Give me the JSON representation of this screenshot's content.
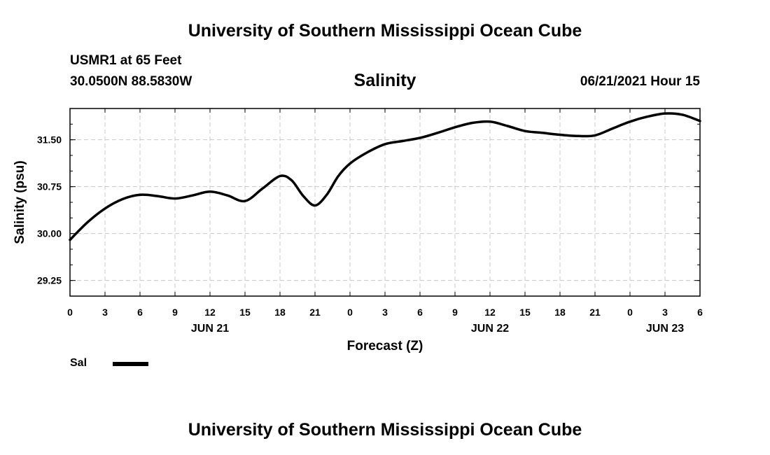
{
  "header": {
    "title": "University of Southern Mississippi Ocean Cube",
    "station": "USMR1 at 65 Feet",
    "coordinates": "30.0500N  88.5830W",
    "parameter": "Salinity",
    "datetime": "06/21/2021 Hour 15"
  },
  "footer": {
    "title": "University of Southern Mississippi Ocean Cube"
  },
  "legend": {
    "label": "Sal",
    "color": "#000000"
  },
  "chart_data": {
    "type": "line",
    "title": "Salinity",
    "xlabel": "Forecast (Z)",
    "ylabel": "Salinity (psu)",
    "xlim": [
      0,
      54
    ],
    "ylim": [
      29.0,
      32.0
    ],
    "grid": true,
    "x_ticks": [
      0,
      3,
      6,
      9,
      12,
      15,
      18,
      21,
      24,
      27,
      30,
      33,
      36,
      39,
      42,
      45,
      48,
      51,
      54
    ],
    "x_tick_labels": [
      "0",
      "3",
      "6",
      "9",
      "12",
      "15",
      "18",
      "21",
      "0",
      "3",
      "6",
      "9",
      "12",
      "15",
      "18",
      "21",
      "0",
      "3",
      "6"
    ],
    "y_ticks": [
      29.25,
      30.0,
      30.75,
      31.5
    ],
    "y_tick_labels": [
      "29.25",
      "30.00",
      "30.75",
      "31.50"
    ],
    "date_labels": [
      {
        "x": 12,
        "label": "JUN 21"
      },
      {
        "x": 36,
        "label": "JUN 22"
      },
      {
        "x": 51,
        "label": "JUN 23"
      }
    ],
    "series": [
      {
        "name": "Sal",
        "color": "#000000",
        "x": [
          0,
          1.5,
          3,
          4.5,
          6,
          7.5,
          9,
          10.5,
          12,
          13.5,
          15,
          16.5,
          18,
          19,
          20,
          21,
          22,
          23,
          24,
          25.5,
          27,
          28.5,
          30,
          31.5,
          33,
          34.5,
          36,
          37.5,
          39,
          40.5,
          42,
          43.5,
          45,
          46.5,
          48,
          49.5,
          51,
          52.5,
          54
        ],
        "values": [
          29.9,
          30.18,
          30.4,
          30.55,
          30.62,
          30.6,
          30.56,
          30.61,
          30.67,
          30.61,
          30.52,
          30.72,
          30.92,
          30.85,
          30.6,
          30.45,
          30.62,
          30.92,
          31.12,
          31.3,
          31.43,
          31.48,
          31.53,
          31.61,
          31.7,
          31.77,
          31.79,
          31.72,
          31.64,
          31.61,
          31.58,
          31.56,
          31.57,
          31.68,
          31.79,
          31.87,
          31.92,
          31.9,
          31.8
        ]
      }
    ]
  }
}
